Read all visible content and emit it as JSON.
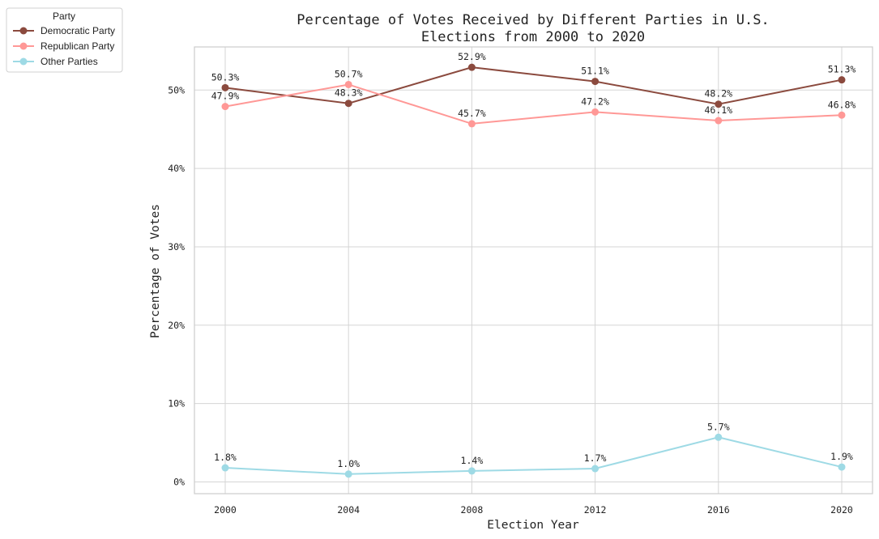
{
  "chart_data": {
    "type": "line",
    "title_lines": [
      "Percentage of Votes Received by Different Parties in U.S.",
      "Elections from 2000 to 2020"
    ],
    "xlabel": "Election Year",
    "ylabel": "Percentage of Votes",
    "x": [
      "2000",
      "2004",
      "2008",
      "2012",
      "2016",
      "2020"
    ],
    "ylim": [
      -1.5,
      55.5
    ],
    "yticks": [
      0,
      10,
      20,
      30,
      40,
      50
    ],
    "ytick_labels": [
      "0%",
      "10%",
      "20%",
      "30%",
      "40%",
      "50%"
    ],
    "grid": true,
    "legend": {
      "title": "Party",
      "placement": "upper-left-outside"
    },
    "series": [
      {
        "name": "Democratic Party",
        "color": "#8b4a3e",
        "values": [
          50.3,
          48.3,
          52.9,
          51.1,
          48.2,
          51.3
        ],
        "labels": [
          "50.3%",
          "48.3%",
          "52.9%",
          "51.1%",
          "48.2%",
          "51.3%"
        ]
      },
      {
        "name": "Republican Party",
        "color": "#ff9896",
        "values": [
          47.9,
          50.7,
          45.7,
          47.2,
          46.1,
          46.8
        ],
        "labels": [
          "47.9%",
          "50.7%",
          "45.7%",
          "47.2%",
          "46.1%",
          "46.8%"
        ]
      },
      {
        "name": "Other Parties",
        "color": "#9edae5",
        "values": [
          1.8,
          1.0,
          1.4,
          1.7,
          5.7,
          1.9
        ],
        "labels": [
          "1.8%",
          "1.0%",
          "1.4%",
          "1.7%",
          "5.7%",
          "1.9%"
        ]
      }
    ]
  }
}
